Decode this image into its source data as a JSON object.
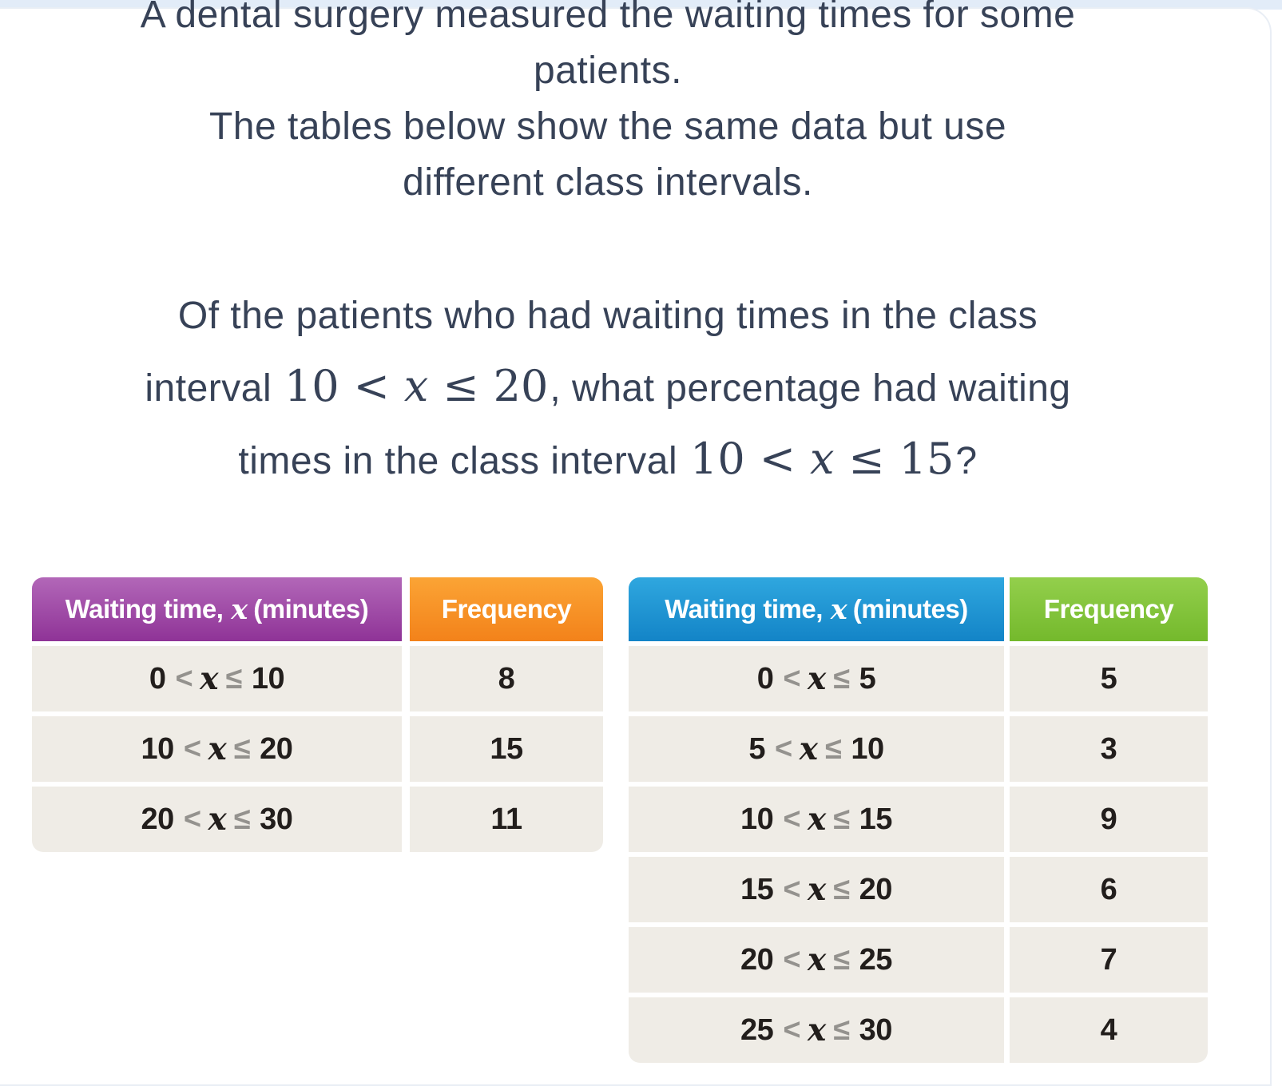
{
  "colors": {
    "top_strip": "#E2ECF8",
    "card_border": "#E9EEF5",
    "question_text": "#374257",
    "purple_top": "#B267B8",
    "purple_bottom": "#8F3397",
    "orange_top": "#FBA435",
    "orange_bottom": "#F3821A",
    "blue_top": "#2FA7DF",
    "blue_bottom": "#1384C7",
    "green_top": "#93CF4C",
    "green_bottom": "#74B92C",
    "row_bg": "#EFECE6",
    "table_text": "#221E1C",
    "operator": "#94928E"
  },
  "question": {
    "intro": [
      "A dental surgery measured the waiting times for some",
      "patients.",
      "The tables below show the same data but use",
      "different class intervals."
    ],
    "body": {
      "line1": "Of the patients who had waiting times in the class",
      "line2_pre": "interval",
      "line2_math": "10 < x ≤ 20",
      "line2_post": ", what percentage had waiting",
      "line3_pre": "times in the class interval",
      "line3_math": "10 < x ≤ 15",
      "line3_post": "?"
    }
  },
  "tables": [
    {
      "name": "coarse-intervals",
      "header": {
        "col1_pre": "Waiting time,",
        "col1_var": "x",
        "col1_post": "(minutes)",
        "col2": "Frequency"
      },
      "rows": [
        {
          "interval": "0 < x ≤ 10",
          "frequency": "8"
        },
        {
          "interval": "10 < x ≤ 20",
          "frequency": "15"
        },
        {
          "interval": "20 < x ≤ 30",
          "frequency": "11"
        }
      ]
    },
    {
      "name": "fine-intervals",
      "header": {
        "col1_pre": "Waiting time,",
        "col1_var": "x",
        "col1_post": "(minutes)",
        "col2": "Frequency"
      },
      "rows": [
        {
          "interval": "0 < x ≤ 5",
          "frequency": "5"
        },
        {
          "interval": "5 < x ≤ 10",
          "frequency": "3"
        },
        {
          "interval": "10 < x ≤ 15",
          "frequency": "9"
        },
        {
          "interval": "15 < x ≤ 20",
          "frequency": "6"
        },
        {
          "interval": "20 < x ≤ 25",
          "frequency": "7"
        },
        {
          "interval": "25 < x ≤ 30",
          "frequency": "4"
        }
      ]
    }
  ]
}
